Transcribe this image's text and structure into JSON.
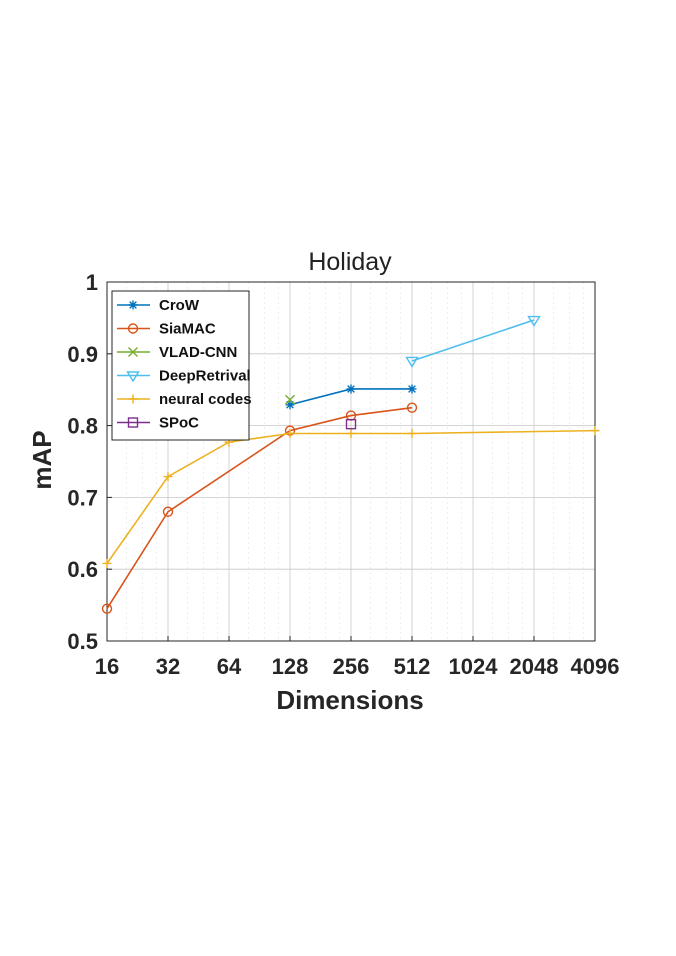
{
  "chart_data": {
    "type": "line",
    "title": "Holiday",
    "xlabel": "Dimensions",
    "ylabel": "mAP",
    "x_scale": "log2",
    "xlim": [
      16,
      4096
    ],
    "ylim": [
      0.5,
      1.0
    ],
    "x_ticks": [
      16,
      32,
      64,
      128,
      256,
      512,
      1024,
      2048,
      4096
    ],
    "x_tick_labels": [
      "16",
      "32",
      "64",
      "128",
      "256",
      "512",
      "1024",
      "2048",
      "4096"
    ],
    "y_ticks": [
      0.5,
      0.6,
      0.7,
      0.8,
      0.9,
      1.0
    ],
    "y_tick_labels": [
      "0.5",
      "0.6",
      "0.7",
      "0.8",
      "0.9",
      "1"
    ],
    "grid": true,
    "legend_position": "top-left",
    "series": [
      {
        "name": "CroW",
        "color": "#0072BD",
        "marker": "asterisk",
        "x": [
          128,
          256,
          512
        ],
        "y": [
          0.829,
          0.851,
          0.851
        ]
      },
      {
        "name": "SiaMAC",
        "color": "#D95319",
        "marker": "circle",
        "x": [
          16,
          32,
          128,
          256,
          512
        ],
        "y": [
          0.545,
          0.68,
          0.793,
          0.814,
          0.825
        ]
      },
      {
        "name": "VLAD-CNN",
        "color": "#77AC30",
        "marker": "x",
        "x": [
          128
        ],
        "y": [
          0.836
        ]
      },
      {
        "name": "DeepRetrival",
        "color": "#4DBEEE",
        "marker": "triangle-down",
        "x": [
          512,
          2048
        ],
        "y": [
          0.89,
          0.947
        ]
      },
      {
        "name": "neural codes",
        "color": "#EDB120",
        "marker": "plus",
        "x": [
          16,
          32,
          64,
          128,
          256,
          512,
          4096
        ],
        "y": [
          0.608,
          0.729,
          0.777,
          0.789,
          0.789,
          0.789,
          0.793
        ]
      },
      {
        "name": "SPoC",
        "color": "#7E2F8E",
        "marker": "square",
        "x": [
          256
        ],
        "y": [
          0.802
        ]
      }
    ]
  }
}
